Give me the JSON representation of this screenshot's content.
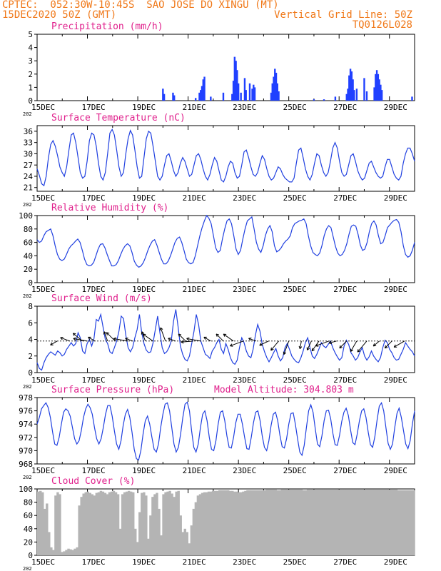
{
  "header": {
    "line1_left": "CPTEC:  052:30W-10:45S  SAO JOSE DO XINGU (MT)",
    "line2_left": "15DEC2020 50Z (GMT)",
    "line2_right": "Vertical Grid Line: 50Z",
    "line3_right": "TQ0126L028"
  },
  "colors": {
    "header": "#f07818",
    "title": "#e0208c",
    "line": "#2040e0",
    "bar": "#2040ff",
    "cloud": "#b4b4b4"
  },
  "x_axis": {
    "labels": [
      "15DEC",
      "17DEC",
      "19DEC",
      "21DEC",
      "23DEC",
      "25DEC",
      "27DEC",
      "29DEC"
    ],
    "label_days": [
      0,
      2,
      4,
      6,
      8,
      10,
      12,
      14
    ],
    "year_stub": "202",
    "range_days": [
      0,
      15
    ]
  },
  "chart_data": [
    {
      "type": "bar",
      "title": "Precipitation (mm/h)",
      "ylim": [
        0,
        5
      ],
      "yticks": [
        0,
        1,
        2,
        3,
        4,
        5
      ],
      "x": [
        5.0,
        5.05,
        5.4,
        5.45,
        6.3,
        6.45,
        6.5,
        6.55,
        6.6,
        6.65,
        6.9,
        7.4,
        7.75,
        7.8,
        7.85,
        7.9,
        7.95,
        8.0,
        8.1,
        8.25,
        8.3,
        8.45,
        8.55,
        8.6,
        8.65,
        9.3,
        9.35,
        9.4,
        9.45,
        9.5,
        9.55,
        9.6,
        11.0,
        11.4,
        11.85,
        12.3,
        12.35,
        12.4,
        12.45,
        12.5,
        12.55,
        12.6,
        12.7,
        13.0,
        13.1,
        13.4,
        13.45,
        13.5,
        13.55,
        13.6,
        13.65,
        13.7,
        14.9
      ],
      "values": [
        0.9,
        0.5,
        0.6,
        0.4,
        0.2,
        0.6,
        0.8,
        1.1,
        1.6,
        1.8,
        0.3,
        0.6,
        0.5,
        1.5,
        3.3,
        3.0,
        2.3,
        1.3,
        0.6,
        1.7,
        0.8,
        1.3,
        0.9,
        1.2,
        1.0,
        0.6,
        1.3,
        1.8,
        2.4,
        2.1,
        1.3,
        0.7,
        0.1,
        0.1,
        0.3,
        0.5,
        0.9,
        1.9,
        2.4,
        2.2,
        1.6,
        0.8,
        0.9,
        1.7,
        0.7,
        1.0,
        2.0,
        2.3,
        2.0,
        1.6,
        1.2,
        0.8,
        0.3
      ]
    },
    {
      "type": "line",
      "title": "Surface Temperature (nC)",
      "ylim": [
        20,
        37.5
      ],
      "yticks": [
        21,
        24,
        27,
        30,
        33,
        36
      ],
      "series": [
        {
          "values": [
            26,
            24.2,
            22,
            21.5,
            24,
            29,
            32.5,
            33.5,
            32,
            29.5,
            26.5,
            25,
            24,
            26.5,
            31,
            35,
            35.5,
            33,
            29,
            25,
            23.5,
            24,
            28,
            33.5,
            35.5,
            35,
            32,
            27.5,
            24,
            23,
            25,
            30,
            35.5,
            36.5,
            35,
            31,
            26.5,
            24,
            25,
            30,
            34,
            36.2,
            35,
            31,
            26.5,
            23.5,
            24,
            29,
            34,
            36,
            35.5,
            32,
            28,
            24,
            23,
            24,
            27,
            29.5,
            30,
            28,
            25.5,
            24,
            25,
            27.5,
            29,
            28,
            26,
            24,
            24.5,
            27,
            29.5,
            30,
            28.5,
            26,
            24,
            23,
            24.5,
            27,
            29,
            28,
            25.5,
            23,
            22.5,
            24,
            26.5,
            28,
            27.5,
            25,
            23.5,
            24,
            27,
            30.5,
            31,
            29,
            26.5,
            24.5,
            24,
            25,
            27.5,
            29.5,
            28.5,
            26,
            24,
            23,
            23.5,
            25,
            26.5,
            26,
            24.5,
            23.5,
            23,
            22.5,
            22.5,
            23.5,
            27.5,
            31,
            31.5,
            29,
            26,
            24,
            23,
            24.5,
            27.5,
            30,
            29.5,
            27,
            25,
            24,
            25,
            28,
            31.5,
            33,
            31.5,
            28,
            25,
            24,
            24.5,
            27,
            29.5,
            30,
            28,
            25.5,
            24,
            23,
            23.5,
            25.5,
            27.5,
            28,
            26.5,
            25,
            24,
            23.5,
            24,
            26.5,
            28.5,
            28.5,
            26.5,
            24.5,
            23.5,
            23,
            24,
            27.5,
            30,
            31.5,
            31.5,
            30,
            28
          ]
        }
      ]
    },
    {
      "type": "line",
      "title": "Relative Humidity (%)",
      "ylim": [
        0,
        100
      ],
      "yticks": [
        0,
        20,
        40,
        60,
        80,
        100
      ],
      "series": [
        {
          "values": [
            64,
            60,
            62,
            70,
            76,
            78,
            80,
            70,
            55,
            42,
            35,
            33,
            35,
            42,
            50,
            55,
            58,
            62,
            65,
            60,
            48,
            35,
            27,
            25,
            26,
            30,
            40,
            50,
            57,
            58,
            52,
            42,
            33,
            25,
            25,
            27,
            33,
            42,
            50,
            55,
            58,
            55,
            45,
            32,
            26,
            23,
            25,
            30,
            38,
            48,
            56,
            62,
            64,
            56,
            45,
            35,
            28,
            28,
            32,
            40,
            50,
            60,
            66,
            68,
            60,
            48,
            35,
            30,
            28,
            30,
            40,
            55,
            70,
            82,
            92,
            100,
            96,
            88,
            70,
            52,
            45,
            48,
            65,
            80,
            92,
            95,
            88,
            70,
            50,
            42,
            48,
            65,
            80,
            92,
            95,
            98,
            80,
            60,
            50,
            45,
            55,
            70,
            80,
            85,
            76,
            55,
            46,
            48,
            52,
            58,
            62,
            65,
            70,
            82,
            88,
            90,
            92,
            93,
            95,
            88,
            70,
            55,
            45,
            42,
            40,
            44,
            55,
            70,
            80,
            85,
            82,
            68,
            54,
            44,
            40,
            42,
            48,
            58,
            72,
            84,
            86,
            84,
            72,
            56,
            48,
            50,
            60,
            76,
            88,
            92,
            86,
            70,
            58,
            60,
            70,
            82,
            86,
            90,
            93,
            94,
            90,
            76,
            55,
            42,
            38,
            40,
            48,
            60
          ]
        }
      ]
    },
    {
      "type": "line",
      "title": "Surface Wind (m/s)",
      "ylim": [
        0,
        8
      ],
      "yticks": [
        0,
        2,
        4,
        6,
        8
      ],
      "series": [
        {
          "values": [
            1.2,
            0.5,
            0.3,
            1.2,
            1.8,
            2.2,
            2.5,
            2.3,
            2.1,
            2.6,
            2.4,
            2.0,
            2.2,
            2.8,
            3.2,
            3.6,
            3.2,
            3.5,
            4.8,
            4.2,
            2.6,
            2.3,
            3.5,
            4.0,
            3.2,
            4.1,
            6.4,
            6.2,
            7.0,
            5.5,
            4.0,
            3.5,
            2.5,
            2.3,
            3.0,
            3.8,
            5.0,
            6.8,
            6.5,
            4.5,
            3.0,
            2.5,
            3.0,
            4.2,
            5.2,
            7.0,
            4.8,
            3.5,
            2.7,
            2.4,
            2.5,
            3.6,
            5.2,
            6.8,
            4.8,
            3.0,
            2.3,
            2.5,
            3.0,
            3.8,
            6.2,
            7.6,
            5.5,
            3.2,
            2.2,
            1.6,
            1.4,
            2.0,
            3.5,
            5.0,
            7.0,
            5.8,
            3.8,
            3.0,
            2.2,
            2.0,
            1.7,
            2.6,
            3.0,
            3.6,
            4.0,
            2.8,
            2.3,
            3.5,
            2.8,
            1.8,
            1.2,
            1.0,
            1.5,
            3.0,
            4.2,
            3.6,
            2.6,
            2.0,
            1.8,
            2.8,
            4.5,
            5.8,
            5.0,
            3.4,
            2.5,
            1.8,
            1.3,
            1.8,
            2.4,
            2.9,
            2.0,
            1.4,
            1.8,
            3.0,
            3.5,
            2.8,
            2.0,
            1.6,
            1.3,
            1.2,
            1.8,
            2.6,
            3.6,
            4.2,
            3.0,
            2.0,
            1.7,
            2.2,
            2.9,
            3.6,
            3.2,
            3.0,
            3.4,
            3.8,
            3.0,
            2.4,
            1.9,
            1.5,
            1.8,
            3.2,
            3.9,
            3.4,
            2.4,
            2.0,
            1.5,
            1.8,
            2.5,
            3.0,
            2.0,
            1.5,
            1.9,
            2.6,
            2.0,
            1.6,
            1.3,
            1.8,
            3.0,
            3.9,
            3.6,
            2.8,
            2.4,
            1.8,
            1.5,
            1.6,
            2.2,
            2.8,
            3.6,
            3.2,
            2.8,
            2.5,
            2.0
          ]
        }
      ]
    },
    {
      "type": "line",
      "title": "Surface Pressure (hPa)",
      "subtitle": "Model Altitude: 304.803 m",
      "ylim": [
        968,
        978
      ],
      "yticks": [
        968,
        970,
        972,
        974,
        976,
        978
      ],
      "series": [
        {
          "values": [
            974,
            975,
            976.3,
            976.8,
            977.2,
            976.5,
            975,
            972.8,
            971,
            970.8,
            972,
            974,
            975.8,
            976.3,
            976,
            975.2,
            973.5,
            971.8,
            971,
            971.5,
            973,
            975,
            976.3,
            977,
            976.5,
            975.5,
            973.5,
            971.8,
            971,
            971.8,
            973.5,
            975.5,
            976.8,
            976.8,
            975.2,
            973,
            971,
            970.2,
            971.5,
            973.8,
            975.5,
            976.2,
            975,
            972.8,
            970.2,
            968.8,
            968.6,
            970,
            972.5,
            974.5,
            975.2,
            974,
            972,
            970.2,
            969.8,
            971,
            973.5,
            975.5,
            977,
            977.2,
            976,
            973.5,
            971,
            969.8,
            970.5,
            972.5,
            975,
            977,
            977.3,
            976,
            973,
            970.5,
            969.8,
            971,
            973.5,
            975.5,
            976,
            974.5,
            972,
            970.2,
            970,
            971.5,
            974,
            975.8,
            976,
            974.5,
            972.2,
            970.5,
            970.4,
            972,
            974.2,
            975.5,
            975.5,
            974,
            972,
            970.3,
            970.2,
            972,
            974.2,
            975.8,
            976,
            974.5,
            972.2,
            970.5,
            970,
            971.5,
            973.8,
            975.5,
            975.8,
            974.5,
            972.3,
            970.6,
            970.4,
            971.8,
            974,
            975.6,
            975.7,
            974,
            971.8,
            969.8,
            969.3,
            970.8,
            973.5,
            976,
            976.9,
            975.8,
            973.3,
            971,
            970.6,
            972.2,
            974.5,
            976,
            976.1,
            974.8,
            972.6,
            970.9,
            970.8,
            972.3,
            974.4,
            975.8,
            976.4,
            975.3,
            973.1,
            971.2,
            970.9,
            972.5,
            974.5,
            976,
            976.3,
            975,
            972.8,
            970.9,
            970.5,
            972.1,
            974.6,
            976.7,
            977.2,
            976,
            973.5,
            971.1,
            970.2,
            971,
            973.5,
            975.6,
            976.4,
            975,
            973,
            971,
            970.3,
            971.5,
            974,
            976
          ]
        }
      ]
    },
    {
      "type": "area",
      "title": "Cloud Cover (%)",
      "ylim": [
        0,
        100
      ],
      "yticks": [
        0,
        20,
        40,
        60,
        80,
        100
      ],
      "series": [
        {
          "values": [
            96,
            97,
            95,
            70,
            78,
            35,
            12,
            8,
            90,
            95,
            92,
            5,
            6,
            8,
            10,
            9,
            8,
            10,
            12,
            75,
            88,
            93,
            95,
            96,
            94,
            92,
            90,
            94,
            95,
            97,
            96,
            94,
            92,
            95,
            96,
            97,
            95,
            92,
            40,
            92,
            95,
            96,
            97,
            96,
            95,
            40,
            20,
            65,
            94,
            95,
            90,
            25,
            60,
            88,
            92,
            94,
            70,
            30,
            92,
            95,
            96,
            97,
            93,
            88,
            96,
            97,
            60,
            35,
            40,
            35,
            18,
            45,
            70,
            80,
            90,
            92,
            94,
            95,
            95,
            96,
            96,
            97,
            97,
            97,
            98,
            98,
            98,
            98,
            98,
            97,
            97,
            96,
            96,
            95,
            95,
            96,
            97,
            98,
            98,
            98,
            98,
            98,
            98,
            98,
            98,
            98,
            99,
            99,
            99,
            99,
            99,
            98,
            98,
            99,
            99,
            99,
            99,
            99,
            99,
            99,
            99,
            99,
            99,
            98,
            98,
            99,
            99,
            99,
            99,
            99,
            99,
            99,
            99,
            99,
            99,
            99,
            99,
            99,
            99,
            99,
            99,
            99,
            99,
            99,
            99,
            99,
            99,
            99,
            99,
            99,
            99,
            99,
            99,
            99,
            99,
            99,
            99,
            99,
            99,
            99,
            99,
            99,
            99,
            99,
            99,
            99,
            99,
            98,
            98,
            98,
            98,
            98,
            98,
            98,
            98
          ]
        }
      ]
    }
  ],
  "wind_arrows": {
    "y_level": 3.8,
    "days": [
      0.8,
      1.3,
      1.8,
      2.0,
      2.3,
      2.8,
      3.1,
      3.6,
      3.8,
      4.3,
      4.6,
      5.1,
      5.5,
      5.9,
      6.2,
      6.5,
      6.9,
      7.4,
      7.8,
      8.2,
      8.7,
      9.2,
      9.6,
      10.0,
      10.5,
      10.9,
      11.2,
      11.6,
      11.9,
      12.3,
      12.7,
      13.1,
      13.6,
      14.1,
      14.6
    ],
    "dirs_deg": [
      300,
      250,
      230,
      260,
      240,
      200,
      225,
      260,
      250,
      200,
      235,
      200,
      250,
      225,
      275,
      260,
      240,
      225,
      235,
      290,
      250,
      295,
      320,
      340,
      350,
      335,
      325,
      290,
      285,
      315,
      330,
      320,
      310,
      315,
      300
    ]
  }
}
